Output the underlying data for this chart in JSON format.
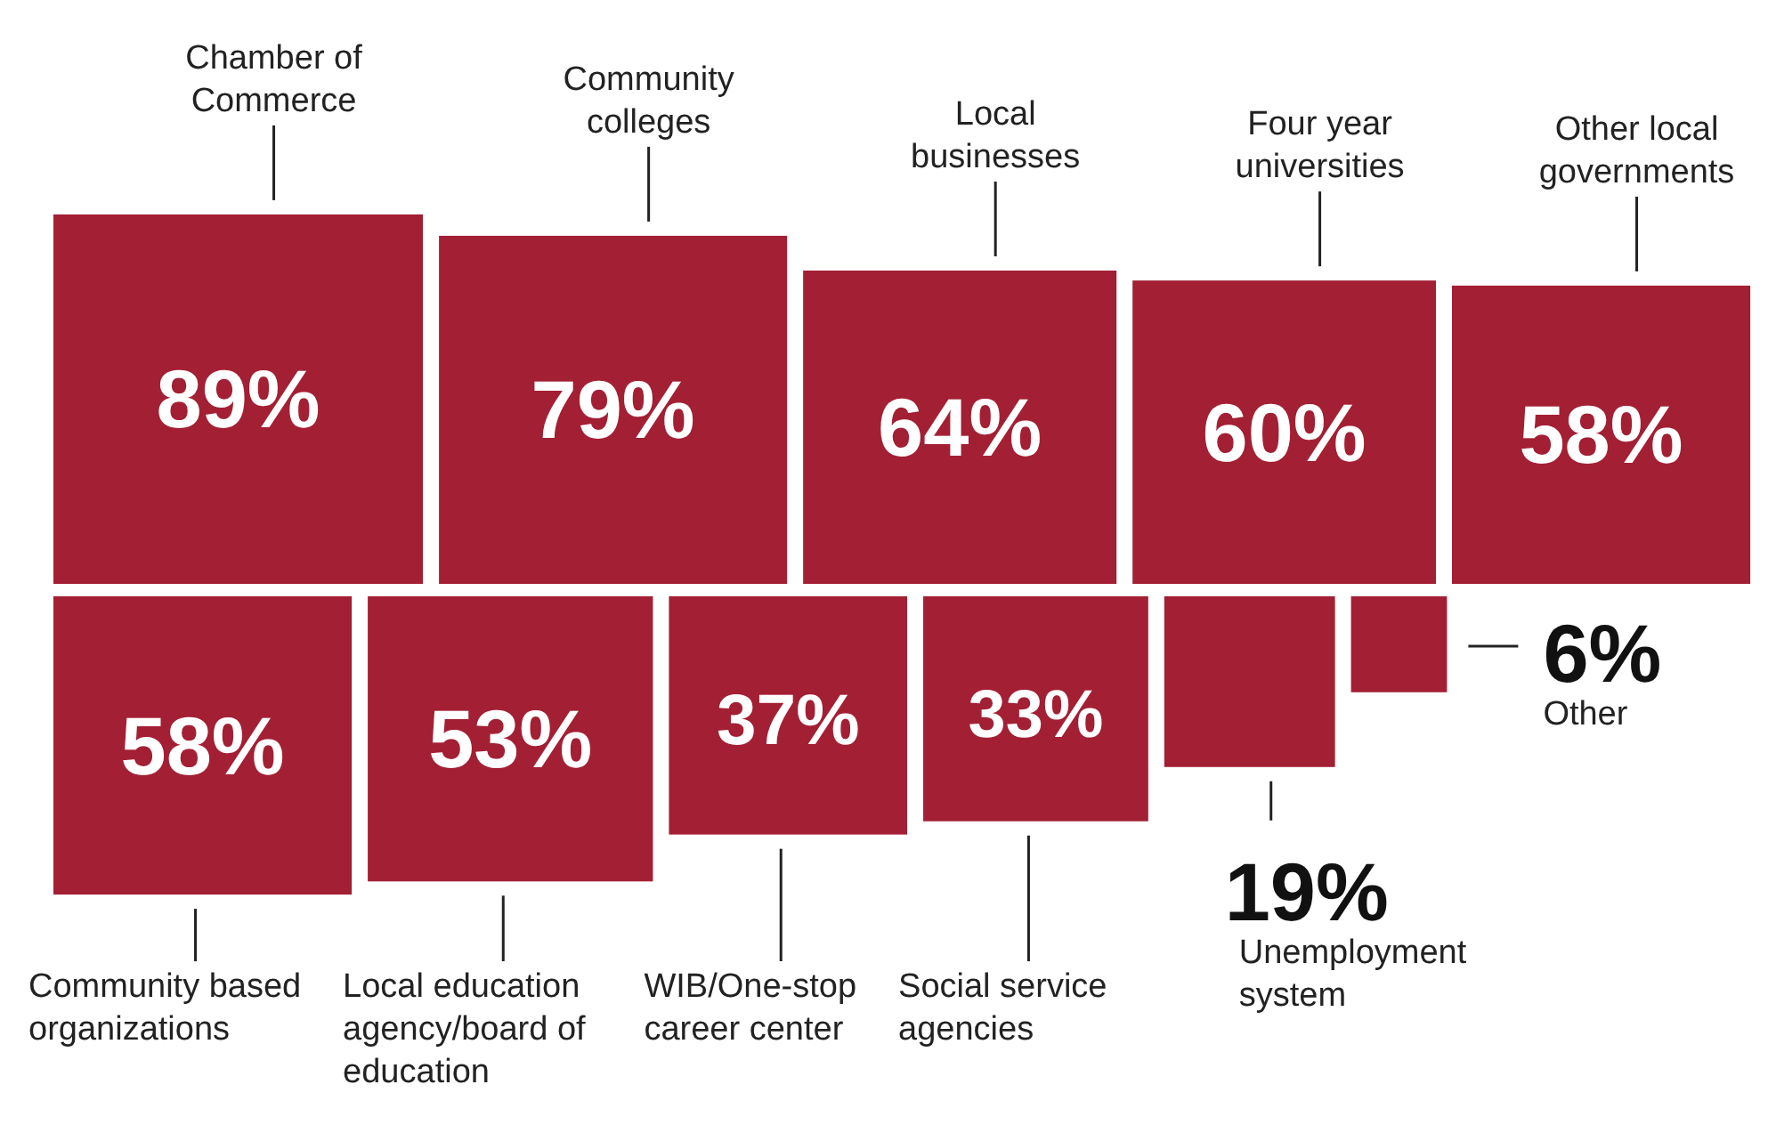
{
  "chart_data": {
    "type": "other",
    "categories": [
      "Chamber of Commerce",
      "Community colleges",
      "Local businesses",
      "Four year universities",
      "Other local governments",
      "Community based organizations",
      "Local education agency/board of education",
      "WIB/One-stop career center",
      "Social service agencies",
      "Unemployment system",
      "Other"
    ],
    "values": [
      89,
      79,
      64,
      60,
      58,
      58,
      53,
      37,
      33,
      19,
      6
    ],
    "value_labels": [
      "89%",
      "79%",
      "64%",
      "60%",
      "58%",
      "58%",
      "53%",
      "37%",
      "33%",
      "19%",
      "6%"
    ],
    "color": "#a31f34"
  }
}
